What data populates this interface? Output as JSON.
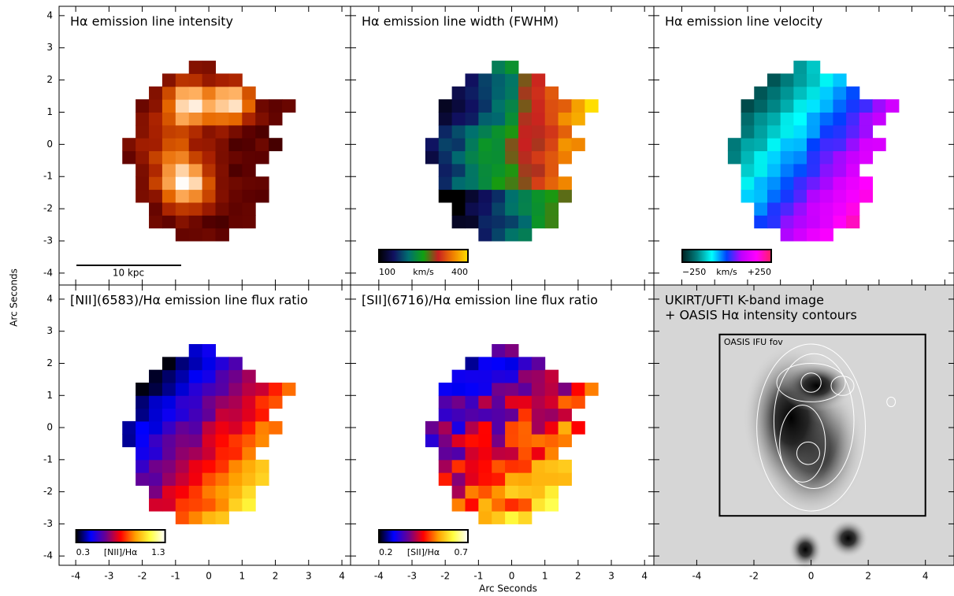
{
  "xlabel": "Arc Seconds",
  "ylabel": "Arc Seconds",
  "chart_data": [
    {
      "type": "image",
      "title": "Hα emission line intensity",
      "xlim": [
        -4.5,
        4.26
      ],
      "ylim": [
        -4.37,
        4.29
      ],
      "xticks": [
        -4,
        -3,
        -2,
        -1,
        0,
        1,
        2,
        3,
        4
      ],
      "yticks": [
        -4,
        -3,
        -2,
        -1,
        0,
        1,
        2,
        3,
        4
      ],
      "colormap": [
        "#000000",
        "#5a0000",
        "#a82000",
        "#e86a00",
        "#ffb060",
        "#ffffff"
      ],
      "scalebar_label": "10 kpc"
    },
    {
      "type": "image",
      "title": "Hα emission line width (FWHM)",
      "xlim": [
        -4.85,
        4.28
      ],
      "ylim": [
        -4.37,
        4.29
      ],
      "xticks": [
        -4,
        -3,
        -2,
        -1,
        0,
        1,
        2,
        3,
        4
      ],
      "yticks": [
        -4,
        -3,
        -2,
        -1,
        0,
        1,
        2,
        3,
        4
      ],
      "colormap": [
        "#000000",
        "#101060",
        "#007070",
        "#10a010",
        "#c82020",
        "#f08000",
        "#ffe000"
      ],
      "colorbar": {
        "ticks": [
          100,
          400
        ],
        "label": "km/s"
      }
    },
    {
      "type": "image",
      "title": "Hα emission line velocity",
      "xlim": [
        -4.85,
        4.28
      ],
      "ylim": [
        -4.37,
        4.29
      ],
      "xticks": [
        -4,
        -3,
        -2,
        -1,
        0,
        1,
        2,
        3,
        4
      ],
      "yticks": [
        -4,
        -3,
        -2,
        -1,
        0,
        1,
        2,
        3,
        4
      ],
      "colormap": [
        "#002020",
        "#008080",
        "#00ffff",
        "#0040ff",
        "#c000ff",
        "#ff00ff",
        "#ff2060"
      ],
      "colorbar": {
        "ticks": [
          {
            "value": -250,
            "label": "−250"
          },
          {
            "value": 250,
            "label": "+250"
          }
        ],
        "label": "km/s"
      }
    },
    {
      "type": "image",
      "title": "[NII](6583)/Hα emission line flux ratio",
      "xlim": [
        -4.5,
        4.26
      ],
      "ylim": [
        -4.29,
        4.44
      ],
      "xticks": [
        -4,
        -3,
        -2,
        -1,
        0,
        1,
        2,
        3,
        4
      ],
      "yticks": [
        -4,
        -3,
        -2,
        -1,
        0,
        1,
        2,
        3,
        4
      ],
      "colormap": [
        "#000000",
        "#0000ff",
        "#6a0090",
        "#ff0000",
        "#ffa000",
        "#ffff40",
        "#ffffff"
      ],
      "colorbar": {
        "ticks": [
          0.3,
          1.3
        ],
        "label": "[NII]/Hα"
      }
    },
    {
      "type": "image",
      "title": "[SII](6716)/Hα emission line flux ratio",
      "xlim": [
        -4.85,
        4.28
      ],
      "ylim": [
        -4.29,
        4.44
      ],
      "xticks": [
        -4,
        -3,
        -2,
        -1,
        0,
        1,
        2,
        3,
        4
      ],
      "yticks": [
        -4,
        -3,
        -2,
        -1,
        0,
        1,
        2,
        3,
        4
      ],
      "colormap": [
        "#000000",
        "#0000ff",
        "#6a0090",
        "#ff0000",
        "#ffa000",
        "#ffff40",
        "#ffffff"
      ],
      "colorbar": {
        "ticks": [
          0.2,
          0.7
        ],
        "label": "[SII]/Hα"
      }
    },
    {
      "type": "kband",
      "title": [
        "UKIRT/UFTI K-band image",
        "+ OASIS Hα intensity contours"
      ],
      "xlim": [
        -5.5,
        5.0
      ],
      "ylim": [
        -4.29,
        4.44
      ],
      "xticks": [
        -4,
        -2,
        0,
        2,
        4
      ],
      "yticks": [
        -4,
        -3,
        -2,
        -1,
        0,
        1,
        2,
        3,
        4
      ],
      "annotation": "OASIS IFU fov"
    }
  ]
}
